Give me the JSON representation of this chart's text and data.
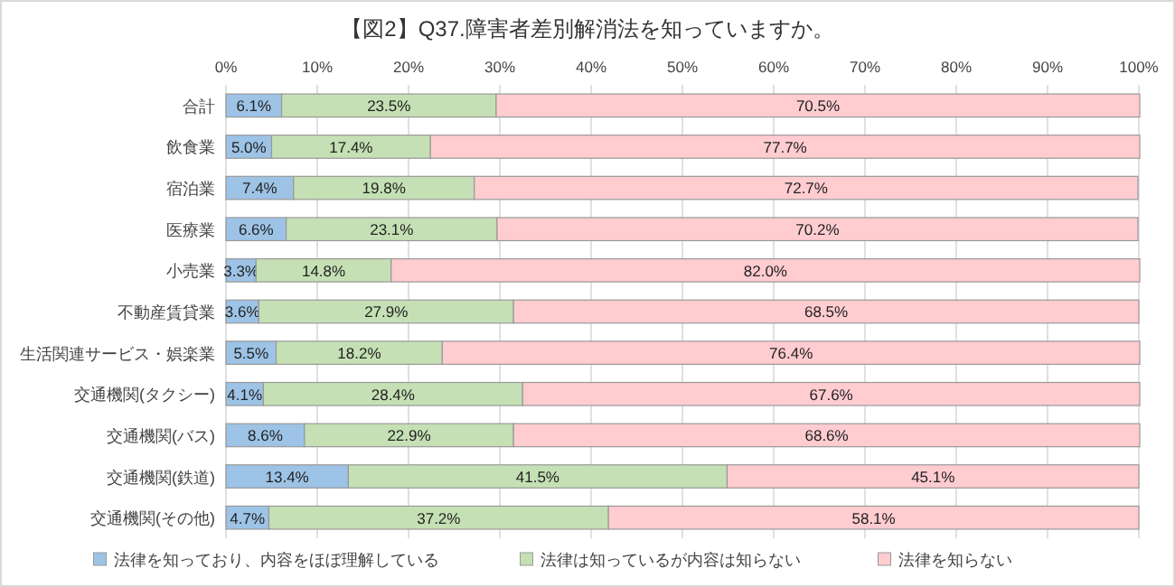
{
  "chart_data": {
    "type": "bar",
    "orientation": "horizontal",
    "stacked": true,
    "title": "【図2】Q37.障害者差別解消法を知っていますか。",
    "categories": [
      "合計",
      "飲食業",
      "宿泊業",
      "医療業",
      "小売業",
      "不動産賃貸業",
      "生活関連サービス・娯楽業",
      "交通機関(タクシー)",
      "交通機関(バス)",
      "交通機関(鉄道)",
      "交通機関(その他)"
    ],
    "series": [
      {
        "name": "法律を知っており、内容をほぼ理解している",
        "color": "#9dc3e6",
        "values": [
          6.1,
          5.0,
          7.4,
          6.6,
          3.3,
          3.6,
          5.5,
          4.1,
          8.6,
          13.4,
          4.7
        ],
        "value_labels": [
          "6.1%",
          "5.0%",
          "7.4%",
          "6.6%",
          "3.3%",
          "3.6%",
          "5.5%",
          "4.1%",
          "8.6%",
          "13.4%",
          "4.7%"
        ]
      },
      {
        "name": "法律は知っているが内容は知らない",
        "color": "#c5e0b4",
        "values": [
          23.5,
          17.4,
          19.8,
          23.1,
          14.8,
          27.9,
          18.2,
          28.4,
          22.9,
          41.5,
          37.2
        ],
        "value_labels": [
          "23.5%",
          "17.4%",
          "19.8%",
          "23.1%",
          "14.8%",
          "27.9%",
          "18.2%",
          "28.4%",
          "22.9%",
          "41.5%",
          "37.2%"
        ]
      },
      {
        "name": "法律を知らない",
        "color": "#ffccd0",
        "values": [
          70.5,
          77.7,
          72.7,
          70.2,
          82.0,
          68.5,
          76.4,
          67.6,
          68.6,
          45.1,
          58.1
        ],
        "value_labels": [
          "70.5%",
          "77.7%",
          "72.7%",
          "70.2%",
          "82.0%",
          "68.5%",
          "76.4%",
          "67.6%",
          "68.6%",
          "45.1%",
          "58.1%"
        ]
      }
    ],
    "xlim": [
      0,
      100
    ],
    "xticks": [
      {
        "value": 0,
        "label": "0%"
      },
      {
        "value": 10,
        "label": "10%"
      },
      {
        "value": 20,
        "label": "20%"
      },
      {
        "value": 30,
        "label": "30%"
      },
      {
        "value": 40,
        "label": "40%"
      },
      {
        "value": 50,
        "label": "50%"
      },
      {
        "value": 60,
        "label": "60%"
      },
      {
        "value": 70,
        "label": "70%"
      },
      {
        "value": 80,
        "label": "80%"
      },
      {
        "value": 90,
        "label": "90%"
      },
      {
        "value": 100,
        "label": "100%"
      }
    ],
    "grid": "x",
    "legend": "bottom"
  }
}
